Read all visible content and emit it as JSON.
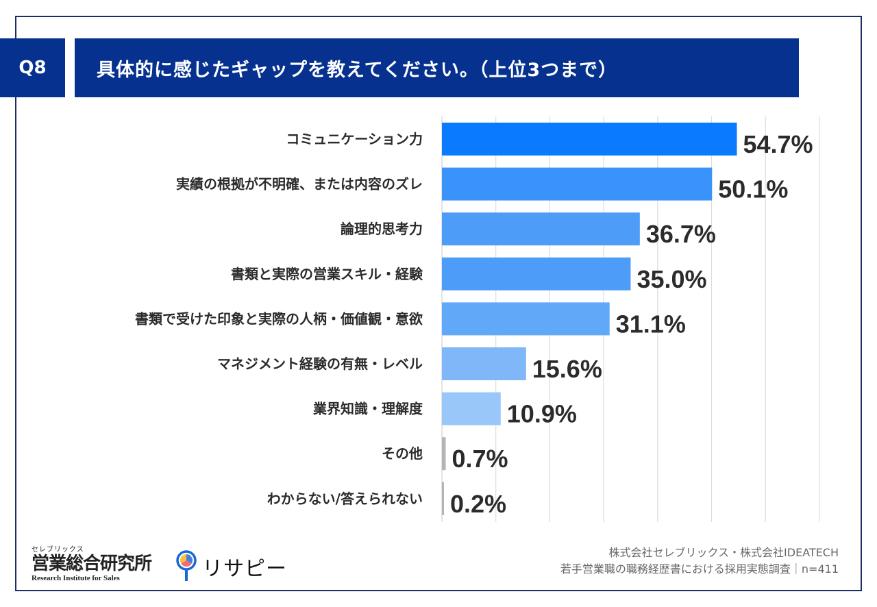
{
  "header": {
    "question_id": "Q8",
    "question_text": "具体的に感じたギャップを教えてください。（上位3つまで）"
  },
  "chart_data": {
    "type": "bar",
    "orientation": "horizontal",
    "title": "具体的に感じたギャップを教えてください。（上位3つまで）",
    "categories": [
      "コミュニケーション力",
      "実績の根拠が不明確、または内容のズレ",
      "論理的思考力",
      "書類と実際の営業スキル・経験",
      "書類で受けた印象と実際の人柄・価値観・意欲",
      "マネジメント経験の有無・レベル",
      "業界知識・理解度",
      "その他",
      "わからない/答えられない"
    ],
    "values": [
      54.7,
      50.1,
      36.7,
      35.0,
      31.1,
      15.6,
      10.9,
      0.7,
      0.2
    ],
    "value_labels": [
      "54.7%",
      "50.1%",
      "36.7%",
      "35.0%",
      "31.1%",
      "15.6%",
      "10.9%",
      "0.7%",
      "0.2%"
    ],
    "colors": [
      "#0a7bff",
      "#3a92fb",
      "#4d9cf8",
      "#4d9cf8",
      "#62a8f8",
      "#7fb7f8",
      "#99c7fa",
      "#b4b4b4",
      "#b4b4b4"
    ],
    "unit": "%",
    "xlim": [
      0,
      70
    ],
    "grid_step": 10,
    "grid": true,
    "xlabel": "",
    "ylabel": ""
  },
  "footer": {
    "logo1_kana": "セレブリックス",
    "logo1_name": "営業総合研究所",
    "logo1_en": "Research Institute for Sales",
    "logo2_name": "リサピー",
    "source_line1": "株式会社セレブリックス・株式会社IDEATECH",
    "source_line2": "若手営業職の職務経歴書における採用実態調査｜n=411"
  }
}
